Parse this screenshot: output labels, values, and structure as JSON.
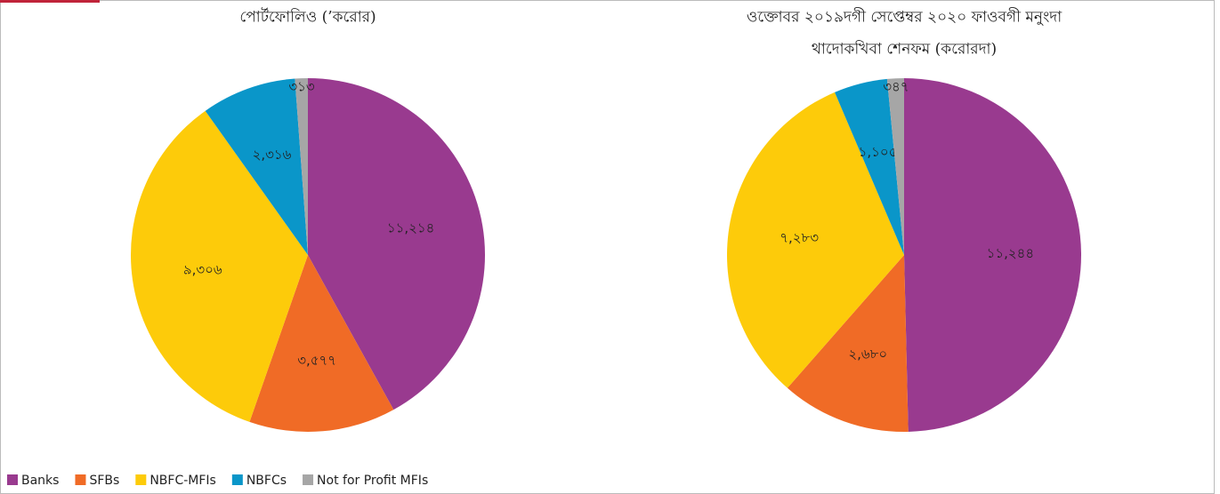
{
  "chart_data": [
    {
      "type": "pie",
      "title": [
        "পোর্টফোলিও (’করোর)"
      ],
      "values": [
        11214,
        3577,
        9306,
        2316,
        313
      ],
      "value_labels": [
        "১১,২১৪",
        "৩,৫৭৭",
        "৯,৩০৬",
        "২,৩১৬",
        "৩১৩"
      ]
    },
    {
      "type": "pie",
      "title": [
        "ওক্তোবর ২০১৯দগী সেপ্তেম্বর ২০২০ ফাওবগী মনুংদা",
        "থাদোকখিবা শেনফম (করোরদা)"
      ],
      "values": [
        11244,
        2680,
        7283,
        1105,
        347
      ],
      "value_labels": [
        "১১,২৪৪",
        "২,৬৮০",
        "৭,২৮৩",
        "১,১০৫",
        "৩৪৭"
      ]
    }
  ],
  "legend": {
    "names": [
      "Banks",
      "SFBs",
      "NBFC-MFIs",
      "NBFCs",
      "Not for Profit MFIs"
    ],
    "colors": [
      "#993a8f",
      "#f06b26",
      "#fdcb0a",
      "#0a96c9",
      "#a6a6a6"
    ],
    "position": "bottom-left"
  }
}
